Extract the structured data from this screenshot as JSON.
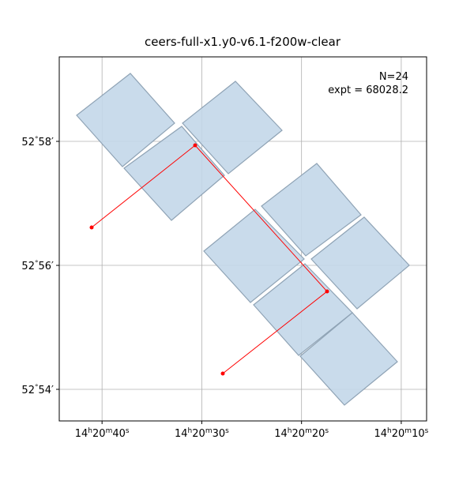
{
  "chart_data": {
    "type": "footprint",
    "title": "ceers-full-x1.y0-v6.1-f200w-clear",
    "annotations": [
      "N=24",
      "expt = 68028.2"
    ],
    "xlim": [
      215.18455,
      215.03108
    ],
    "ylim": [
      52.89151,
      52.98939
    ],
    "xticks": [
      {
        "value": 215.16667,
        "label": "14h20m40s"
      },
      {
        "value": 215.125,
        "label": "14h20m30s"
      },
      {
        "value": 215.08333,
        "label": "14h20m20s"
      },
      {
        "value": 215.04167,
        "label": "14h20m10s"
      }
    ],
    "yticks": [
      {
        "value": 52.9,
        "label": "52°54′"
      },
      {
        "value": 52.93333,
        "label": "52°56′"
      },
      {
        "value": 52.96667,
        "label": "52°58′"
      }
    ],
    "grid": true,
    "footprint_color": "#c3d7e9",
    "polygons": [
      {
        "x": [
          215.17729,
          215.15485,
          215.13636,
          215.15815
        ],
        "y": [
          52.97368,
          52.98493,
          52.97156,
          52.95988
        ]
      },
      {
        "x": [
          215.15749,
          215.13339,
          215.11557,
          215.13768
        ],
        "y": [
          52.95945,
          52.97071,
          52.95754,
          52.94544
        ]
      },
      {
        "x": [
          215.13306,
          215.11095,
          215.09148,
          215.11392
        ],
        "y": [
          52.97156,
          52.98281,
          52.96964,
          52.95797
        ]
      },
      {
        "x": [
          215.10006,
          215.07696,
          215.05848,
          215.08158
        ],
        "y": [
          52.94926,
          52.96073,
          52.94693,
          52.93589
        ]
      },
      {
        "x": [
          215.12415,
          215.1027,
          215.08224,
          215.10468
        ],
        "y": [
          52.93716,
          52.94841,
          52.93504,
          52.92336
        ]
      },
      {
        "x": [
          215.07927,
          215.05716,
          215.03834,
          215.06013
        ],
        "y": [
          52.93504,
          52.94629,
          52.93334,
          52.92166
        ]
      },
      {
        "x": [
          215.10336,
          215.08191,
          215.06211,
          215.08455
        ],
        "y": [
          52.92272,
          52.93376,
          52.9206,
          52.90913
        ]
      },
      {
        "x": [
          215.08389,
          215.06211,
          215.04329,
          215.06541
        ],
        "y": [
          52.90892,
          52.9206,
          52.90743,
          52.89576
        ]
      }
    ],
    "path": {
      "color": "#ff0000",
      "x": [
        215.17102,
        215.12778,
        215.07267,
        215.11623
      ],
      "y": [
        52.94353,
        52.96561,
        52.92633,
        52.90425
      ]
    }
  }
}
